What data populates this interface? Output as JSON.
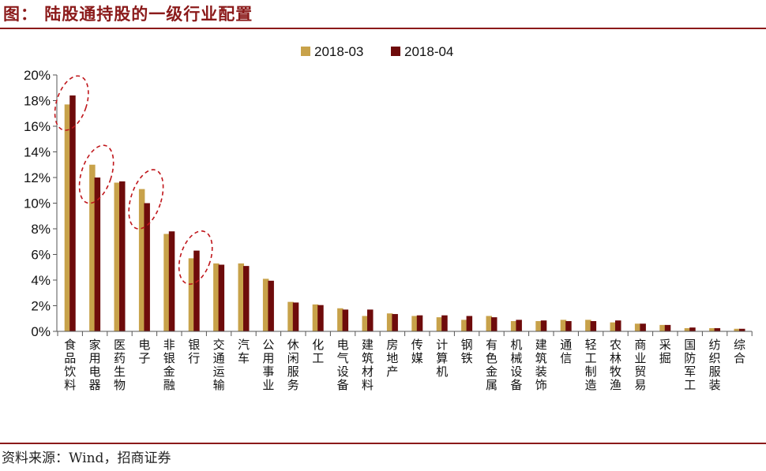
{
  "header": {
    "title": "图： 陆股通持股的一级行业配置"
  },
  "footer": {
    "source": "资料来源：Wind，招商证券"
  },
  "colors": {
    "series1": "#C8A24A",
    "series2": "#6E0B0B",
    "accent": "#8B1A1A",
    "highlight": "#C0161B"
  },
  "chart_data": {
    "type": "bar",
    "title": "",
    "xlabel": "",
    "ylabel": "",
    "ylim": [
      0,
      20
    ],
    "yticks": [
      "0%",
      "2%",
      "4%",
      "6%",
      "8%",
      "10%",
      "12%",
      "14%",
      "16%",
      "18%",
      "20%"
    ],
    "legend_position": "top-center",
    "grid": false,
    "categories": [
      "食品饮料",
      "家用电器",
      "医药生物",
      "电子",
      "非银金融",
      "银行",
      "交通运输",
      "汽车",
      "公用事业",
      "休闲服务",
      "化工",
      "电气设备",
      "建筑材料",
      "房地产",
      "传媒",
      "计算机",
      "钢铁",
      "有色金属",
      "机械设备",
      "建筑装饰",
      "通信",
      "轻工制造",
      "农林牧渔",
      "商业贸易",
      "采掘",
      "国防军工",
      "纺织服装",
      "综合"
    ],
    "series": [
      {
        "name": "2018-03",
        "values": [
          17.7,
          13.0,
          11.6,
          11.1,
          7.6,
          5.7,
          5.3,
          5.3,
          4.1,
          2.3,
          2.1,
          1.8,
          1.2,
          1.4,
          1.2,
          1.1,
          0.9,
          1.2,
          0.8,
          0.8,
          0.9,
          0.9,
          0.7,
          0.6,
          0.5,
          0.25,
          0.25,
          0.2
        ]
      },
      {
        "name": "2018-04",
        "values": [
          18.4,
          12.0,
          11.7,
          10.0,
          7.8,
          6.3,
          5.2,
          5.1,
          3.95,
          2.25,
          2.05,
          1.7,
          1.7,
          1.35,
          1.25,
          1.25,
          1.2,
          1.1,
          0.9,
          0.85,
          0.8,
          0.8,
          0.85,
          0.6,
          0.5,
          0.3,
          0.25,
          0.2
        ]
      }
    ],
    "annotations": [
      "dashed-ellipse:食品饮料",
      "dashed-ellipse:家用电器",
      "dashed-ellipse:电子",
      "dashed-ellipse:银行"
    ]
  }
}
